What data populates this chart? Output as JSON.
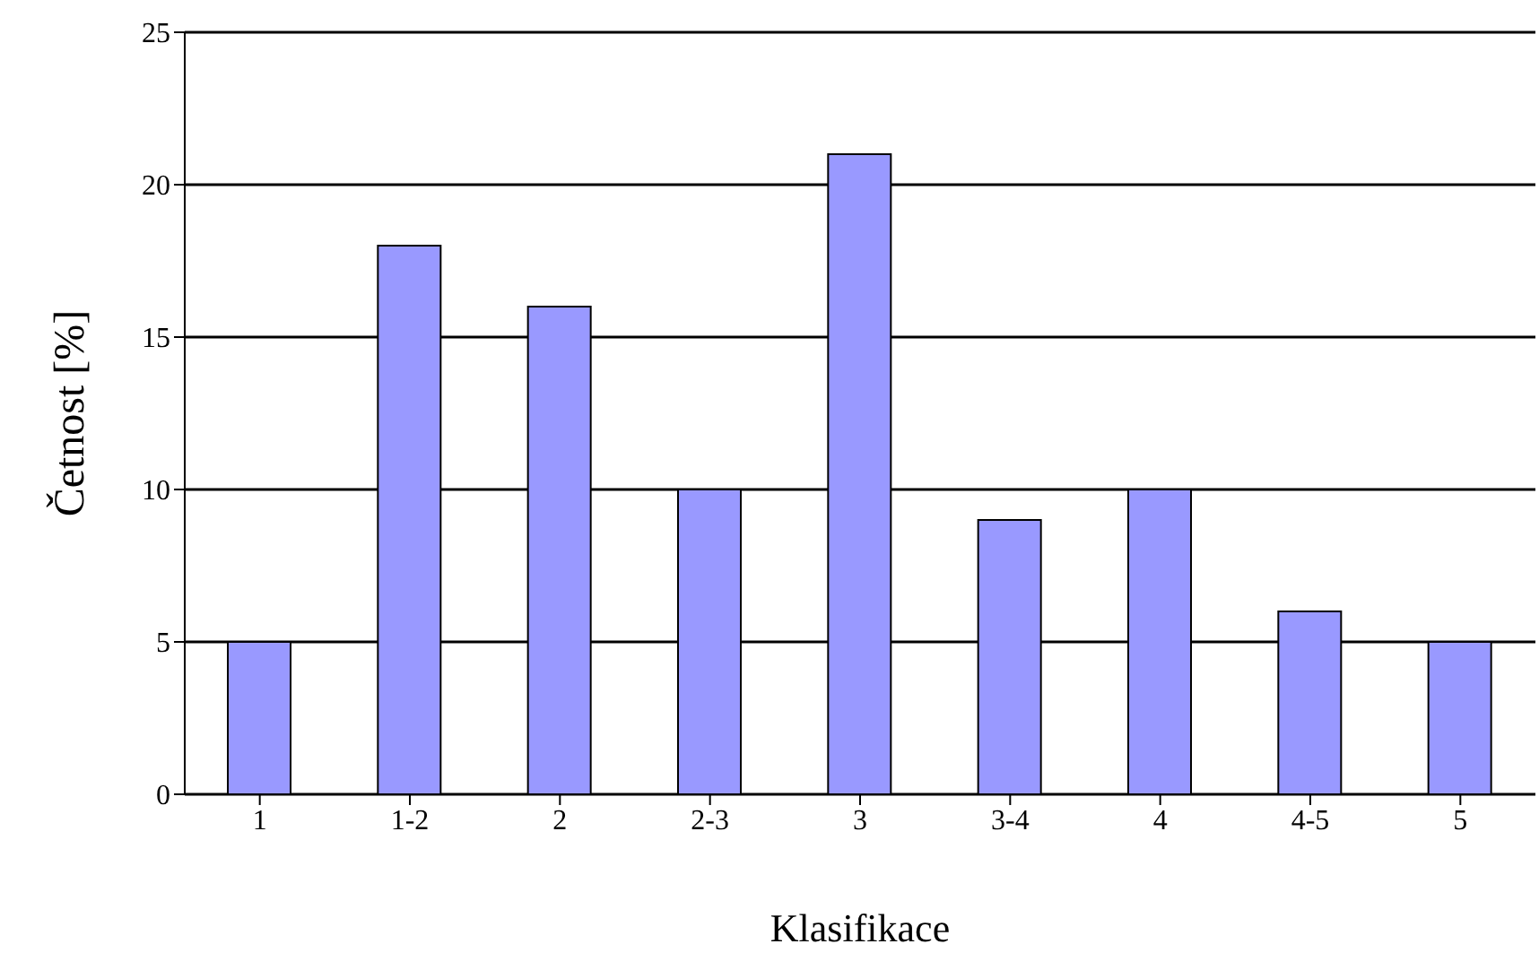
{
  "chart_data": {
    "type": "bar",
    "xlabel": "Klasifikace",
    "ylabel": "Četnost [%]",
    "categories": [
      "1",
      "1-2",
      "2",
      "2-3",
      "3",
      "3-4",
      "4",
      "4-5",
      "5"
    ],
    "values": [
      5,
      18,
      16,
      10,
      21,
      9,
      10,
      6,
      5
    ],
    "color": "#9999ff",
    "ylim": [
      0,
      25
    ],
    "yticks": [
      0,
      5,
      10,
      15,
      20,
      25
    ],
    "grid": "y"
  }
}
